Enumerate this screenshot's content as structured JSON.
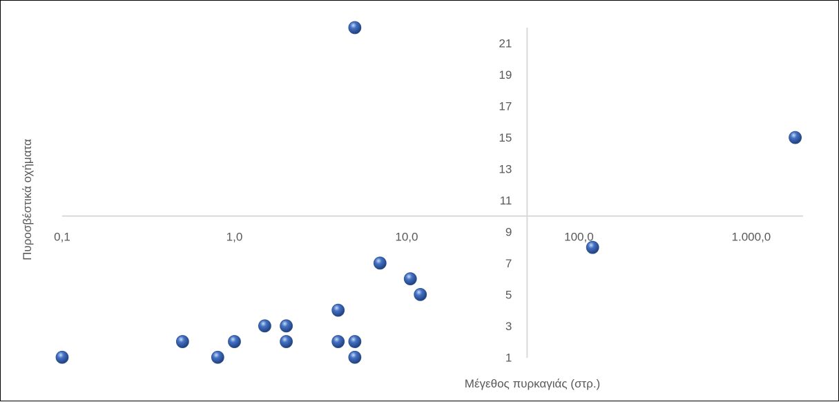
{
  "chart_data": {
    "type": "scatter",
    "title": "",
    "xlabel": "Μέγεθος πυρκαγιάς (στρ.)",
    "ylabel": "Πυροσβέστικά οχήματα",
    "x_scale": "log",
    "xlim": [
      0.1,
      2000
    ],
    "ylim": [
      0,
      22
    ],
    "y_axis_crosses_x_at": 50,
    "x_axis_crosses_y_at": 10,
    "x_tick_values": [
      0.1,
      1,
      10,
      100,
      1000
    ],
    "x_tick_labels": [
      "0,1",
      "1,0",
      "10,0",
      "100,0",
      "1.000,0"
    ],
    "y_tick_values": [
      1,
      3,
      5,
      7,
      9,
      11,
      13,
      15,
      17,
      19,
      21
    ],
    "y_tick_labels": [
      "1",
      "3",
      "5",
      "7",
      "9",
      "11",
      "13",
      "15",
      "17",
      "19",
      "21"
    ],
    "grid": false,
    "legend": "none",
    "marker_color": "#4472C4",
    "points": [
      {
        "x": 0.1,
        "y": 1
      },
      {
        "x": 0.5,
        "y": 2
      },
      {
        "x": 0.8,
        "y": 1
      },
      {
        "x": 1,
        "y": 2
      },
      {
        "x": 1.5,
        "y": 3
      },
      {
        "x": 2,
        "y": 2
      },
      {
        "x": 2,
        "y": 3
      },
      {
        "x": 4,
        "y": 2
      },
      {
        "x": 4,
        "y": 4
      },
      {
        "x": 5,
        "y": 1
      },
      {
        "x": 5,
        "y": 2
      },
      {
        "x": 5,
        "y": 22
      },
      {
        "x": 7,
        "y": 7
      },
      {
        "x": 10.5,
        "y": 6
      },
      {
        "x": 12,
        "y": 5
      },
      {
        "x": 120,
        "y": 8
      },
      {
        "x": 1800,
        "y": 15
      }
    ]
  }
}
